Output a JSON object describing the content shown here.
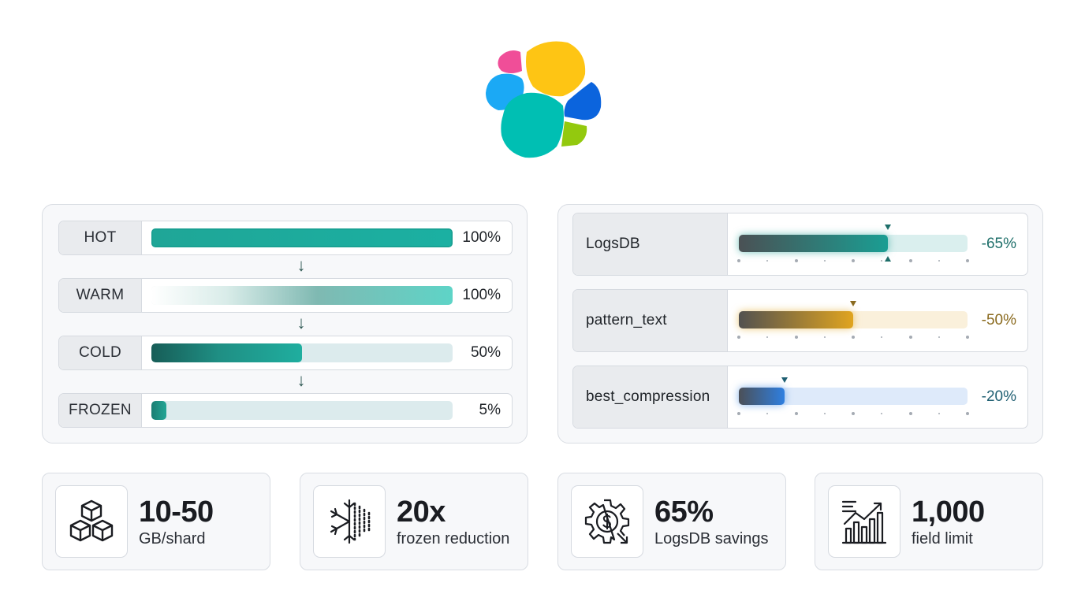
{
  "brand": {
    "logo_colors": [
      "#f04e98",
      "#fec514",
      "#1ba9f5",
      "#0b64dd",
      "#00bfb3",
      "#93c90e"
    ]
  },
  "storage_tiers": [
    {
      "label": "HOT",
      "value_text": "100%",
      "fill": 1.0
    },
    {
      "label": "WARM",
      "value_text": "100%",
      "fill": 1.0
    },
    {
      "label": "COLD",
      "value_text": "50%",
      "fill": 0.5
    },
    {
      "label": "FROZEN",
      "value_text": "5%",
      "fill": 0.05
    }
  ],
  "compression_modes": [
    {
      "label": "LogsDB",
      "value_text": "-65%",
      "fill": 0.65,
      "accent": "#1a9e93",
      "text_color": "#1d6e69"
    },
    {
      "label": "pattern_text",
      "value_text": "-50%",
      "fill": 0.5,
      "accent": "#e0a41f",
      "text_color": "#8a6a1e"
    },
    {
      "label": "best_compression",
      "value_text": "-20%",
      "fill": 0.2,
      "accent": "#2f7fe0",
      "text_color": "#1f5f72"
    }
  ],
  "stats": [
    {
      "value": "10-50",
      "label": "GB/shard",
      "icon": "cubes-icon"
    },
    {
      "value": "20x",
      "label": "frozen reduction",
      "icon": "snowflake-data-icon"
    },
    {
      "value": "65%",
      "label": "LogsDB savings",
      "icon": "gear-dollar-icon"
    },
    {
      "value": "1,000",
      "label": "field limit",
      "icon": "growth-chart-icon"
    }
  ]
}
